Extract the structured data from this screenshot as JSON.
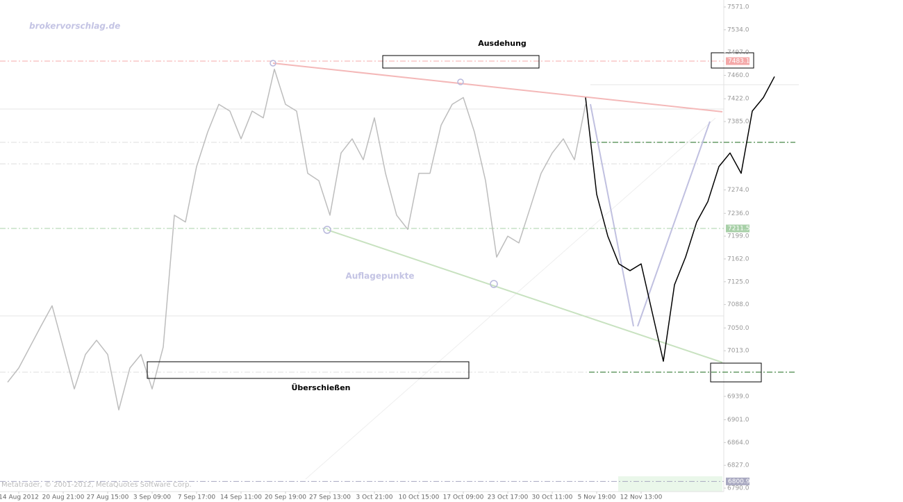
{
  "chart_data": {
    "type": "line",
    "watermark": "brokervorschlag.de",
    "annotations": [
      "Ausdehung",
      "Auflagepunkte",
      "Überschießen"
    ],
    "footer": "Metatrader, © 2001-2012, MetaQuotes Software Corp.",
    "categories": [
      null,
      "14 Aug 2012",
      null,
      null,
      null,
      "20 Aug 21:00",
      null,
      null,
      null,
      "27 Aug 15:00",
      null,
      null,
      null,
      "3 Sep 09:00",
      null,
      null,
      null,
      "7 Sep 17:00",
      null,
      null,
      null,
      "14 Sep 11:00",
      null,
      null,
      null,
      "20 Sep 19:00",
      null,
      null,
      null,
      "27 Sep 13:00",
      null,
      null,
      null,
      "3 Oct 21:00",
      null,
      null,
      null,
      "10 Oct 15:00",
      null,
      null,
      null,
      "17 Oct 09:00",
      null,
      null,
      null,
      "23 Oct 17:00",
      null,
      null,
      null,
      "30 Oct 11:00",
      null,
      null,
      null,
      "5 Nov 19:00",
      null,
      null,
      null,
      "12 Nov 13:00",
      null,
      null,
      null,
      null,
      null,
      null,
      null,
      null,
      null,
      null,
      null,
      null
    ],
    "series": [
      {
        "color": "#bdbdbd",
        "values": [
          6962,
          6985,
          7019,
          7053,
          7086,
          7019,
          6951,
          7007,
          7030,
          7007,
          6917,
          6985,
          7007,
          6951,
          7019,
          7233,
          7222,
          7312,
          7368,
          7413,
          7402,
          7357,
          7402,
          7391,
          7470,
          7413,
          7402,
          7301,
          7289,
          7233,
          7334,
          7357,
          7323,
          7391,
          7301,
          7233,
          7210,
          7301,
          7301,
          7379,
          7413,
          7424,
          7368,
          7289,
          7165,
          7199,
          7188,
          7244,
          7301,
          7334,
          7357,
          7323,
          7413,
          null,
          null,
          null,
          null,
          null,
          null,
          null,
          null,
          null,
          null,
          null,
          null,
          null,
          null,
          null,
          null,
          null
        ]
      },
      {
        "color": "#000000",
        "values": [
          null,
          null,
          null,
          null,
          null,
          null,
          null,
          null,
          null,
          null,
          null,
          null,
          null,
          null,
          null,
          null,
          null,
          null,
          null,
          null,
          null,
          null,
          null,
          null,
          null,
          null,
          null,
          null,
          null,
          null,
          null,
          null,
          null,
          null,
          null,
          null,
          null,
          null,
          null,
          null,
          null,
          null,
          null,
          null,
          null,
          null,
          null,
          null,
          null,
          null,
          null,
          null,
          7424,
          7267,
          7199,
          7154,
          7143,
          7154,
          7075,
          6996,
          7120,
          7165,
          7222,
          7255,
          7312,
          7334,
          7301,
          7402,
          7424,
          7458
        ]
      }
    ],
    "ylim": [
      7582.3,
      6784.4
    ],
    "yticks": [
      {
        "value": 7571,
        "label": "7571.0"
      },
      {
        "value": 7534,
        "label": "7534.0"
      },
      {
        "value": 7497,
        "label": "7497.0"
      },
      {
        "value": 7460,
        "label": "7460.0"
      },
      {
        "value": 7422,
        "label": "7422.0"
      },
      {
        "value": 7385,
        "label": "7385.0"
      },
      {
        "value": 7274,
        "label": "7274.0"
      },
      {
        "value": 7236,
        "label": "7236.0"
      },
      {
        "value": 7199,
        "label": "7199.0"
      },
      {
        "value": 7162,
        "label": "7162.0"
      },
      {
        "value": 7125,
        "label": "7125.0"
      },
      {
        "value": 7088,
        "label": "7088.0"
      },
      {
        "value": 7050,
        "label": "7050.0"
      },
      {
        "value": 7013,
        "label": "7013.0"
      },
      {
        "value": 6939,
        "label": "6939.0"
      },
      {
        "value": 6901,
        "label": "6901.0"
      },
      {
        "value": 6864,
        "label": "6864.0"
      },
      {
        "value": 6827,
        "label": "6827.0"
      },
      {
        "value": 6790,
        "label": "6790.0"
      }
    ],
    "price_labels": [
      {
        "value": 7483.1,
        "color": "#f4a8a8"
      },
      {
        "value": 7211.5,
        "color": "#a8d0a8"
      },
      {
        "value": 6800.9,
        "color": "#a8a8c0"
      }
    ]
  }
}
